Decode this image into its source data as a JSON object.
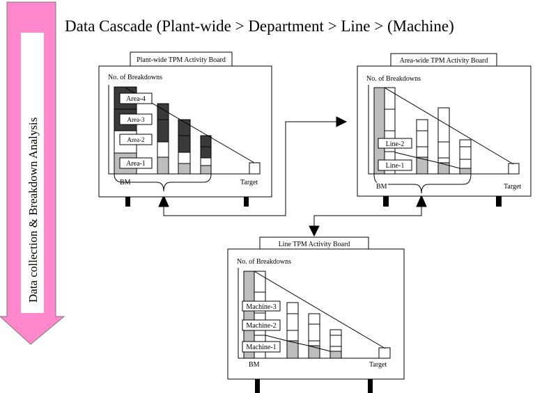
{
  "title": "Data Cascade (Plant-wide > Department > Line > (Machine)",
  "side_arrow": {
    "label": "Data collection & Breakdown Analysis",
    "color": "#ff88cc"
  },
  "colors": {
    "dark_segment": "#3a3a3a",
    "gray_segment": "#bdbdbd"
  },
  "boards": [
    {
      "title": "Plant-wide TPM Activity Board",
      "y_label": "No. of Breakdowns",
      "x_start": "BM",
      "x_end": "Target",
      "segment_labels": [
        "Area-4",
        "Area-3",
        "Area-2",
        "Area-1"
      ]
    },
    {
      "title": "Area-wide TPM Activity Board",
      "y_label": "No. of Breakdowns",
      "x_start": "BM",
      "x_end": "Target",
      "segment_labels": [
        "Line-2",
        "Line-1"
      ]
    },
    {
      "title": "Line TPM Activity Board",
      "y_label": "No. of Breakdowns",
      "x_start": "BM",
      "x_end": "Target",
      "segment_labels": [
        "Machine-3",
        "Machine-2",
        "Machine-1"
      ]
    }
  ]
}
